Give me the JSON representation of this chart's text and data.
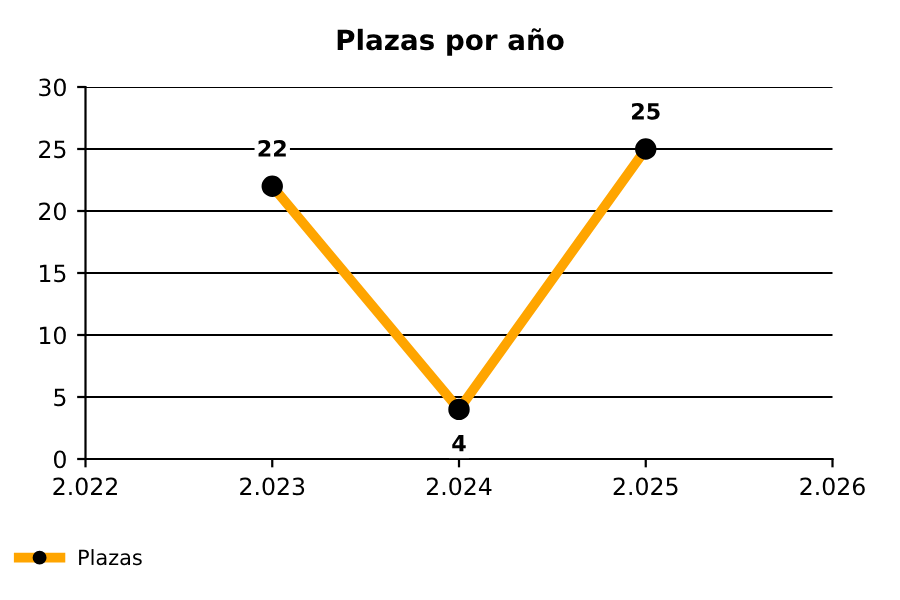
{
  "chart_data": {
    "type": "line",
    "title": "Plazas por año",
    "x": [
      2023,
      2024,
      2025
    ],
    "series": [
      {
        "name": "Plazas",
        "color": "#ffa500",
        "colors": [
          "#000000",
          "#000000",
          "#000000"
        ],
        "values": [
          22,
          4,
          25
        ]
      }
    ],
    "xlim": [
      2022,
      2026
    ],
    "xticks": [
      {
        "value": 2022,
        "label": "2.022"
      },
      {
        "value": 2023,
        "label": "2.023"
      },
      {
        "value": 2024,
        "label": "2.024"
      },
      {
        "value": 2025,
        "label": "2.025"
      },
      {
        "value": 2026,
        "label": "2.026"
      }
    ],
    "ylim": [
      0,
      30
    ],
    "yticks": [
      0,
      5,
      10,
      15,
      20,
      25,
      30
    ],
    "grid": "y",
    "legend": "bottom left",
    "marker": "circle",
    "line_style": "solid",
    "data_labels": true
  }
}
